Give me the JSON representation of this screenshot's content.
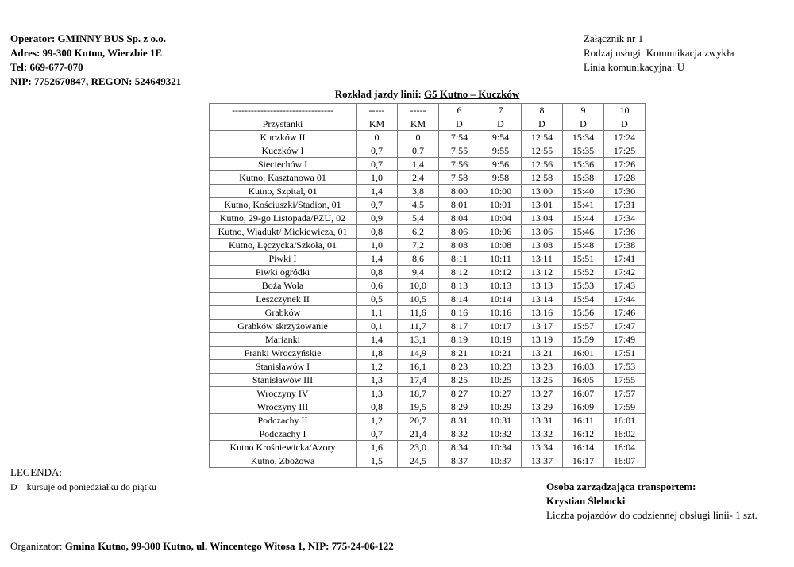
{
  "operator": [
    "Operator: GMINNY BUS Sp. z o.o.",
    "Adres: 99-300 Kutno, Wierzbie 1E",
    "Tel: 669-677-070",
    "NIP: 7752670847, REGON: 524649321"
  ],
  "attachment": [
    "Załącznik nr 1",
    "Rodzaj usługi: Komunikacja zwykła",
    "Linia komunikacyjna: U"
  ],
  "title_prefix": "Rozkład jazdy linii: ",
  "title_line": "G5 Kutno – Kuczków",
  "table": {
    "header1": [
      "--------------------------------",
      "-----",
      "-----",
      "6",
      "7",
      "8",
      "9",
      "10"
    ],
    "header2": [
      "Przystanki",
      "KM",
      "KM",
      "D",
      "D",
      "D",
      "D",
      "D"
    ],
    "rows": [
      [
        "Kuczków II",
        "0",
        "0",
        "7:54",
        "9:54",
        "12:54",
        "15:34",
        "17:24"
      ],
      [
        "Kuczków I",
        "0,7",
        "0,7",
        "7:55",
        "9:55",
        "12:55",
        "15:35",
        "17:25"
      ],
      [
        "Sieciechów I",
        "0,7",
        "1,4",
        "7:56",
        "9:56",
        "12:56",
        "15:36",
        "17:26"
      ],
      [
        "Kutno, Kasztanowa 01",
        "1,0",
        "2,4",
        "7:58",
        "9:58",
        "12:58",
        "15:38",
        "17:28"
      ],
      [
        "Kutno, Szpital, 01",
        "1,4",
        "3,8",
        "8:00",
        "10:00",
        "13:00",
        "15:40",
        "17:30"
      ],
      [
        "Kutno, Kościuszki/Stadion, 01",
        "0,7",
        "4,5",
        "8:01",
        "10:01",
        "13:01",
        "15:41",
        "17:31"
      ],
      [
        "Kutno, 29-go Listopada/PZU, 02",
        "0,9",
        "5,4",
        "8:04",
        "10:04",
        "13:04",
        "15:44",
        "17:34"
      ],
      [
        "Kutno, Wiadukt/ Mickiewicza, 01",
        "0,8",
        "6,2",
        "8:06",
        "10:06",
        "13:06",
        "15:46",
        "17:36"
      ],
      [
        "Kutno, Łęczycka/Szkoła, 01",
        "1,0",
        "7,2",
        "8:08",
        "10:08",
        "13:08",
        "15:48",
        "17:38"
      ],
      [
        "Piwki I",
        "1,4",
        "8,6",
        "8:11",
        "10:11",
        "13:11",
        "15:51",
        "17:41"
      ],
      [
        "Piwki ogródki",
        "0,8",
        "9,4",
        "8:12",
        "10:12",
        "13:12",
        "15:52",
        "17:42"
      ],
      [
        "Boża Wola",
        "0,6",
        "10,0",
        "8:13",
        "10:13",
        "13:13",
        "15:53",
        "17:43"
      ],
      [
        "Leszczynek II",
        "0,5",
        "10,5",
        "8:14",
        "10:14",
        "13:14",
        "15:54",
        "17:44"
      ],
      [
        "Grabków",
        "1,1",
        "11,6",
        "8:16",
        "10:16",
        "13:16",
        "15:56",
        "17:46"
      ],
      [
        "Grabków skrzyżowanie",
        "0,1",
        "11,7",
        "8:17",
        "10:17",
        "13:17",
        "15:57",
        "17:47"
      ],
      [
        "Marianki",
        "1,4",
        "13,1",
        "8:19",
        "10:19",
        "13:19",
        "15:59",
        "17:49"
      ],
      [
        "Franki Wroczyńskie",
        "1,8",
        "14,9",
        "8:21",
        "10:21",
        "13:21",
        "16:01",
        "17:51"
      ],
      [
        "Stanisławów I",
        "1,2",
        "16,1",
        "8:23",
        "10:23",
        "13:23",
        "16:03",
        "17:53"
      ],
      [
        "Stanisławów III",
        "1,3",
        "17,4",
        "8:25",
        "10:25",
        "13:25",
        "16:05",
        "17:55"
      ],
      [
        "Wroczyny IV",
        "1,3",
        "18,7",
        "8:27",
        "10:27",
        "13:27",
        "16:07",
        "17:57"
      ],
      [
        "Wroczyny III",
        "0,8",
        "19,5",
        "8:29",
        "10:29",
        "13:29",
        "16:09",
        "17:59"
      ],
      [
        "Podczachy II",
        "1,2",
        "20,7",
        "8:31",
        "10:31",
        "13:31",
        "16:11",
        "18:01"
      ],
      [
        "Podczachy I",
        "0,7",
        "21,4",
        "8:32",
        "10:32",
        "13:32",
        "16:12",
        "18:02"
      ],
      [
        "Kutno Krośniewicka/Azory",
        "1,6",
        "23,0",
        "8:34",
        "10:34",
        "13:34",
        "16:14",
        "18:04"
      ],
      [
        "Kutno, Zbożowa",
        "1,5",
        "24,5",
        "8:37",
        "10:37",
        "13:37",
        "16:17",
        "18:07"
      ]
    ]
  },
  "legend_title": "LEGENDA:",
  "legend_item": "D – kursuje od poniedziałku do piątku",
  "manager_label": "Osoba zarządzająca transportem:",
  "manager_name": "Krystian Ślebocki",
  "vehicles": "Liczba pojazdów do codziennej obsługi linii- 1 szt.",
  "organizer_label": "Organizator: ",
  "organizer_value": "Gmina Kutno, 99-300 Kutno, ul. Wincentego Witosa 1, NIP: 775-24-06-122"
}
